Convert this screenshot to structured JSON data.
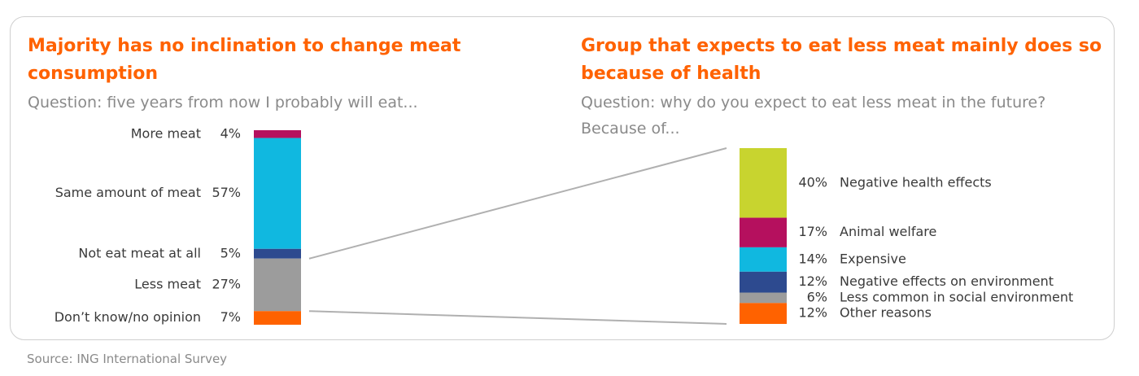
{
  "source": "Source: ING International Survey",
  "colors": {
    "accent": "#ff6200",
    "magenta": "#b5105e",
    "cyan": "#10b8e0",
    "navy": "#2d4a8f",
    "gray": "#9c9c9c",
    "orange": "#ff6200",
    "lime": "#c8d42f",
    "connector": "#b0b0b0"
  },
  "chart_data": [
    {
      "type": "bar",
      "stacked": true,
      "title": "Majority has no inclination to change meat consumption",
      "subtitle": "Question: five years from now I probably will eat...",
      "segments": [
        {
          "label": "More meat",
          "value": 4,
          "value_label": "4%",
          "color": "#b5105e"
        },
        {
          "label": "Same amount of meat",
          "value": 57,
          "value_label": "57%",
          "color": "#10b8e0"
        },
        {
          "label": "Not eat meat at all",
          "value": 5,
          "value_label": "5%",
          "color": "#2d4a8f"
        },
        {
          "label": "Less meat",
          "value": 27,
          "value_label": "27%",
          "color": "#9c9c9c"
        },
        {
          "label": "Don’t know/no opinion",
          "value": 7,
          "value_label": "7%",
          "color": "#ff6200"
        }
      ]
    },
    {
      "type": "bar",
      "stacked": true,
      "title": "Group that expects to eat less meat mainly does so because of health",
      "subtitle": "Question: why do you expect to eat less meat in the future? Because of...",
      "segments": [
        {
          "label": "Negative health effects",
          "value": 40,
          "value_label": "40%",
          "color": "#c8d42f"
        },
        {
          "label": "Animal welfare",
          "value": 17,
          "value_label": "17%",
          "color": "#b5105e"
        },
        {
          "label": "Expensive",
          "value": 14,
          "value_label": "14%",
          "color": "#10b8e0"
        },
        {
          "label": "Negative effects on environment",
          "value": 12,
          "value_label": "12%",
          "color": "#2d4a8f"
        },
        {
          "label": "Less common in social environment",
          "value": 6,
          "value_label": "6%",
          "color": "#9c9c9c"
        },
        {
          "label": "Other reasons",
          "value": 12,
          "value_label": "12%",
          "color": "#ff6200"
        }
      ]
    }
  ]
}
